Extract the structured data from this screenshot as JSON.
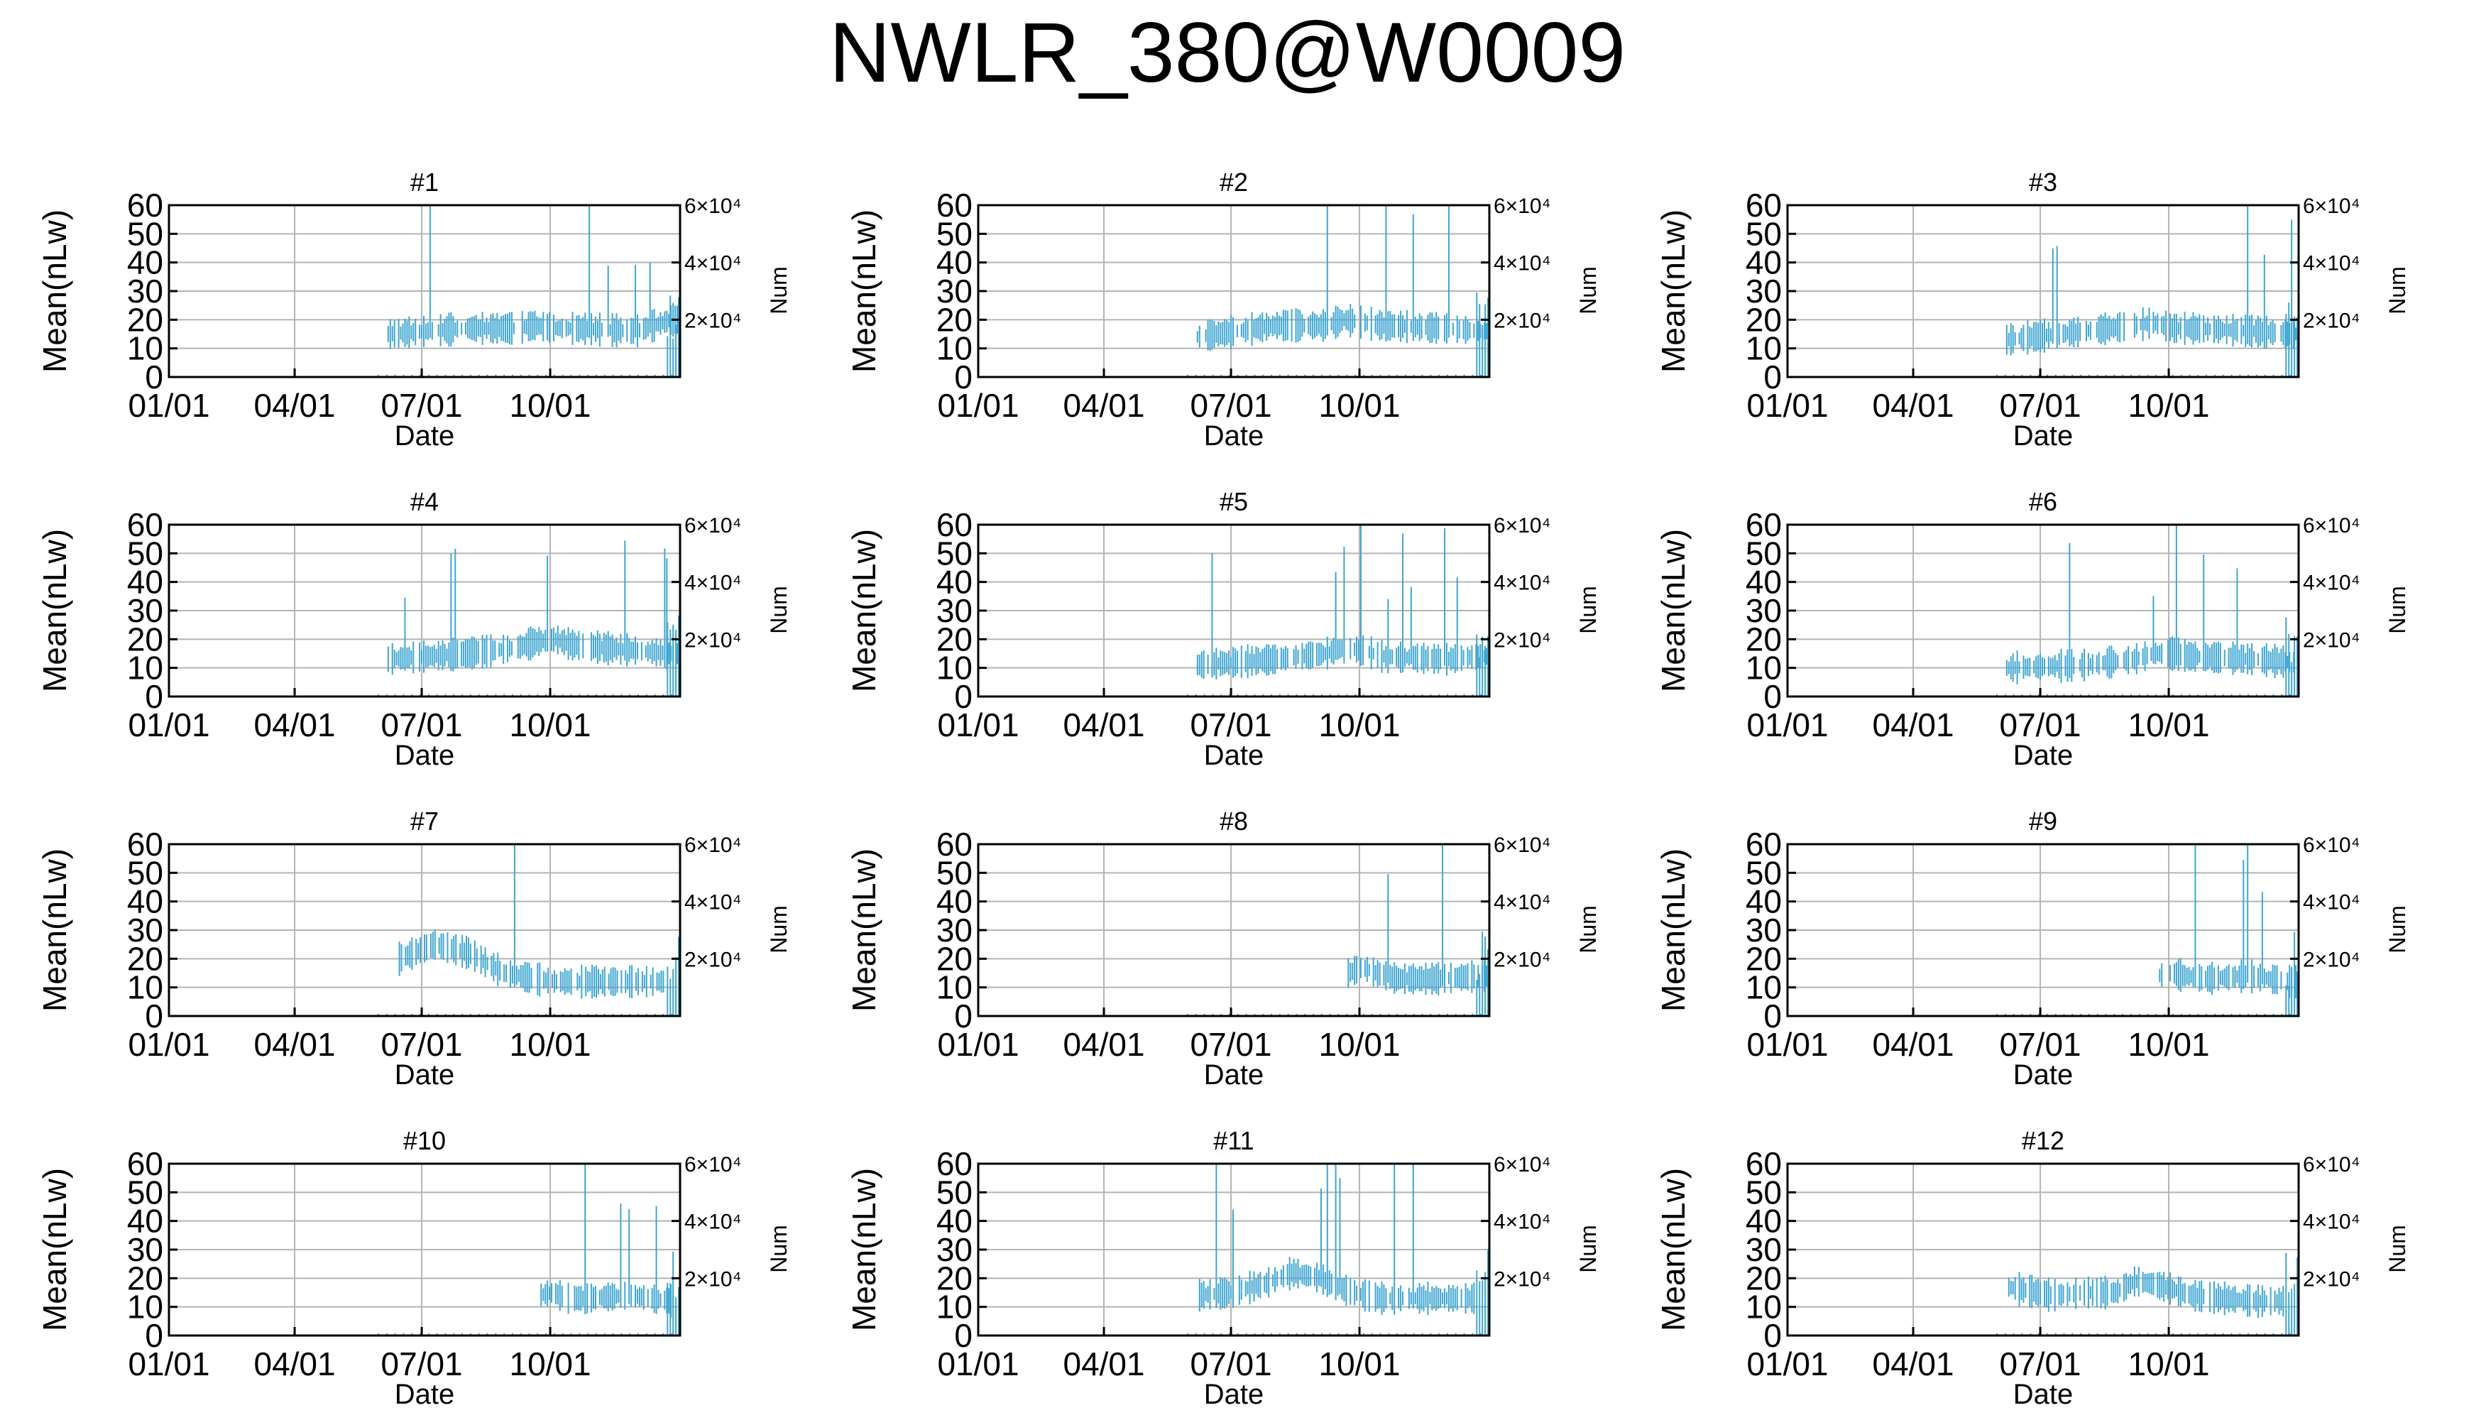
{
  "figure": {
    "title": "NWLR_380@W0009"
  },
  "chart_data": [
    {
      "type": "bar",
      "panel": "#1",
      "title": "#1",
      "xlabel": "Date",
      "ylabel": "Mean(nLw)",
      "y2label": "Num",
      "x_ticks": [
        "01/01",
        "04/01",
        "07/01",
        "10/01"
      ],
      "y_ticks": [
        "0",
        "10",
        "20",
        "30",
        "40",
        "50",
        "60"
      ],
      "y2_ticks": [
        "2×10⁴",
        "4×10⁴",
        "6×10⁴"
      ],
      "ylim": [
        0,
        60
      ],
      "y2lim": [
        0,
        60000
      ],
      "grid": true,
      "x_range_days": [
        0,
        366
      ],
      "mean_days": [
        157,
        213,
        249,
        262,
        277,
        289,
        335,
        360
      ],
      "mean_values": [
        15,
        17,
        17,
        18,
        17,
        17,
        16,
        20
      ]
    },
    {
      "type": "bar",
      "panel": "#2",
      "title": "#2",
      "xlabel": "Date",
      "ylabel": "Mean(nLw)",
      "y2label": "Num",
      "x_ticks": [
        "01/01",
        "04/01",
        "07/01",
        "10/01"
      ],
      "y_ticks": [
        "0",
        "10",
        "20",
        "30",
        "40",
        "50",
        "60"
      ],
      "y2_ticks": [
        "2×10⁴",
        "4×10⁴",
        "6×10⁴"
      ],
      "ylim": [
        0,
        60
      ],
      "y2lim": [
        0,
        60000
      ],
      "grid": true,
      "x_range_days": [
        0,
        366
      ],
      "mean_days": [
        157,
        213,
        249,
        262,
        277,
        289,
        335,
        360
      ],
      "mean_values": [
        14,
        18,
        18,
        20,
        19,
        18,
        17,
        16
      ]
    },
    {
      "type": "bar",
      "panel": "#3",
      "title": "#3",
      "xlabel": "Date",
      "ylabel": "Mean(nLw)",
      "y2label": "Num",
      "x_ticks": [
        "01/01",
        "04/01",
        "07/01",
        "10/01"
      ],
      "y_ticks": [
        "0",
        "10",
        "20",
        "30",
        "40",
        "50",
        "60"
      ],
      "y2_ticks": [
        "2×10⁴",
        "4×10⁴",
        "6×10⁴"
      ],
      "ylim": [
        0,
        60
      ],
      "y2lim": [
        0,
        60000
      ],
      "grid": true,
      "x_range_days": [
        0,
        366
      ],
      "mean_days": [
        157,
        213,
        249,
        262,
        277,
        289,
        335,
        360
      ],
      "mean_values": [
        13,
        16,
        18,
        19,
        17,
        17,
        16,
        15
      ]
    },
    {
      "type": "bar",
      "panel": "#4",
      "title": "#4",
      "xlabel": "Date",
      "ylabel": "Mean(nLw)",
      "y2label": "Num",
      "x_ticks": [
        "01/01",
        "04/01",
        "07/01",
        "10/01"
      ],
      "y_ticks": [
        "0",
        "10",
        "20",
        "30",
        "40",
        "50",
        "60"
      ],
      "y2_ticks": [
        "2×10⁴",
        "4×10⁴",
        "6×10⁴"
      ],
      "ylim": [
        0,
        60
      ],
      "y2lim": [
        0,
        60000
      ],
      "grid": true,
      "x_range_days": [
        0,
        366
      ],
      "mean_days": [
        157,
        213,
        249,
        262,
        277,
        289,
        335,
        360
      ],
      "mean_values": [
        13,
        15,
        17,
        19,
        20,
        18,
        16,
        15
      ]
    },
    {
      "type": "bar",
      "panel": "#5",
      "title": "#5",
      "xlabel": "Date",
      "ylabel": "Mean(nLw)",
      "y2label": "Num",
      "x_ticks": [
        "01/01",
        "04/01",
        "07/01",
        "10/01"
      ],
      "y_ticks": [
        "0",
        "10",
        "20",
        "30",
        "40",
        "50",
        "60"
      ],
      "y2_ticks": [
        "2×10⁴",
        "4×10⁴",
        "6×10⁴"
      ],
      "ylim": [
        0,
        60
      ],
      "y2lim": [
        0,
        60000
      ],
      "grid": true,
      "x_range_days": [
        0,
        366
      ],
      "mean_days": [
        157,
        213,
        249,
        262,
        277,
        289,
        335,
        360
      ],
      "mean_values": [
        11,
        13,
        15,
        17,
        16,
        14,
        13,
        14
      ]
    },
    {
      "type": "bar",
      "panel": "#6",
      "title": "#6",
      "xlabel": "Date",
      "ylabel": "Mean(nLw)",
      "y2label": "Num",
      "x_ticks": [
        "01/01",
        "04/01",
        "07/01",
        "10/01"
      ],
      "y_ticks": [
        "0",
        "10",
        "20",
        "30",
        "40",
        "50",
        "60"
      ],
      "y2_ticks": [
        "2×10⁴",
        "4×10⁴",
        "6×10⁴"
      ],
      "ylim": [
        0,
        60
      ],
      "y2lim": [
        0,
        60000
      ],
      "grid": true,
      "x_range_days": [
        0,
        366
      ],
      "mean_days": [
        157,
        213,
        249,
        262,
        277,
        289,
        335,
        360
      ],
      "mean_values": [
        10,
        11,
        13,
        15,
        15,
        14,
        13,
        12
      ]
    },
    {
      "type": "bar",
      "panel": "#7",
      "title": "#7",
      "xlabel": "Date",
      "ylabel": "Mean(nLw)",
      "y2label": "Num",
      "x_ticks": [
        "01/01",
        "04/01",
        "07/01",
        "10/01"
      ],
      "y_ticks": [
        "0",
        "10",
        "20",
        "30",
        "40",
        "50",
        "60"
      ],
      "y2_ticks": [
        "2×10⁴",
        "4×10⁴",
        "6×10⁴"
      ],
      "ylim": [
        0,
        60
      ],
      "y2lim": [
        0,
        60000
      ],
      "grid": true,
      "x_range_days": [
        0,
        366
      ],
      "mean_days": [
        165,
        190,
        215,
        240,
        262,
        277,
        289,
        335
      ],
      "mean_values": [
        20,
        25,
        22,
        15,
        13,
        12,
        12,
        12
      ]
    },
    {
      "type": "bar",
      "panel": "#8",
      "title": "#8",
      "xlabel": "Date",
      "ylabel": "Mean(nLw)",
      "y2label": "Num",
      "x_ticks": [
        "01/01",
        "04/01",
        "07/01",
        "10/01"
      ],
      "y_ticks": [
        "0",
        "10",
        "20",
        "30",
        "40",
        "50",
        "60"
      ],
      "y2_ticks": [
        "2×10⁴",
        "4×10⁴",
        "6×10⁴"
      ],
      "ylim": [
        0,
        60
      ],
      "y2lim": [
        0,
        60000
      ],
      "grid": true,
      "x_range_days": [
        0,
        366
      ],
      "mean_days": [
        265,
        275,
        285,
        300,
        330,
        360
      ],
      "mean_values": [
        15,
        17,
        15,
        13,
        13,
        14
      ]
    },
    {
      "type": "bar",
      "panel": "#9",
      "title": "#9",
      "xlabel": "Date",
      "ylabel": "Mean(nLw)",
      "y2label": "Num",
      "x_ticks": [
        "01/01",
        "04/01",
        "07/01",
        "10/01"
      ],
      "y_ticks": [
        "0",
        "10",
        "20",
        "30",
        "40",
        "50",
        "60"
      ],
      "y2_ticks": [
        "2×10⁴",
        "4×10⁴",
        "6×10⁴"
      ],
      "ylim": [
        0,
        60
      ],
      "y2lim": [
        0,
        60000
      ],
      "grid": true,
      "x_range_days": [
        0,
        366
      ],
      "mean_days": [
        265,
        275,
        285,
        300,
        330,
        360
      ],
      "mean_values": [
        14,
        15,
        14,
        13,
        14,
        12
      ]
    },
    {
      "type": "bar",
      "panel": "#10",
      "title": "#10",
      "xlabel": "Date",
      "ylabel": "Mean(nLw)",
      "y2label": "Num",
      "x_ticks": [
        "01/01",
        "04/01",
        "07/01",
        "10/01"
      ],
      "y_ticks": [
        "0",
        "10",
        "20",
        "30",
        "40",
        "50",
        "60"
      ],
      "y2_ticks": [
        "2×10⁴",
        "4×10⁴",
        "6×10⁴"
      ],
      "ylim": [
        0,
        60
      ],
      "y2lim": [
        0,
        60000
      ],
      "grid": true,
      "x_range_days": [
        0,
        366
      ],
      "mean_days": [
        265,
        275,
        285,
        300,
        330,
        360
      ],
      "mean_values": [
        14,
        15,
        13,
        13,
        14,
        12
      ]
    },
    {
      "type": "bar",
      "panel": "#11",
      "title": "#11",
      "xlabel": "Date",
      "ylabel": "Mean(nLw)",
      "y2label": "Num",
      "x_ticks": [
        "01/01",
        "04/01",
        "07/01",
        "10/01"
      ],
      "y_ticks": [
        "0",
        "10",
        "20",
        "30",
        "40",
        "50",
        "60"
      ],
      "y2_ticks": [
        "2×10⁴",
        "4×10⁴",
        "6×10⁴"
      ],
      "ylim": [
        0,
        60
      ],
      "y2lim": [
        0,
        60000
      ],
      "grid": true,
      "x_range_days": [
        0,
        366
      ],
      "mean_days": [
        157,
        180,
        205,
        225,
        245,
        262,
        277,
        289,
        335
      ],
      "mean_values": [
        14,
        15,
        18,
        22,
        20,
        16,
        14,
        13,
        13
      ]
    },
    {
      "type": "bar",
      "panel": "#12",
      "title": "#12",
      "xlabel": "Date",
      "ylabel": "Mean(nLw)",
      "y2label": "Num",
      "x_ticks": [
        "01/01",
        "04/01",
        "07/01",
        "10/01"
      ],
      "y_ticks": [
        "0",
        "10",
        "20",
        "30",
        "40",
        "50",
        "60"
      ],
      "y2_ticks": [
        "2×10⁴",
        "4×10⁴",
        "6×10⁴"
      ],
      "ylim": [
        0,
        60
      ],
      "y2lim": [
        0,
        60000
      ],
      "grid": true,
      "x_range_days": [
        0,
        366
      ],
      "mean_days": [
        157,
        190,
        213,
        235,
        249,
        262,
        277,
        289,
        335
      ],
      "mean_values": [
        17,
        14,
        15,
        15,
        19,
        18,
        16,
        14,
        12
      ]
    }
  ]
}
